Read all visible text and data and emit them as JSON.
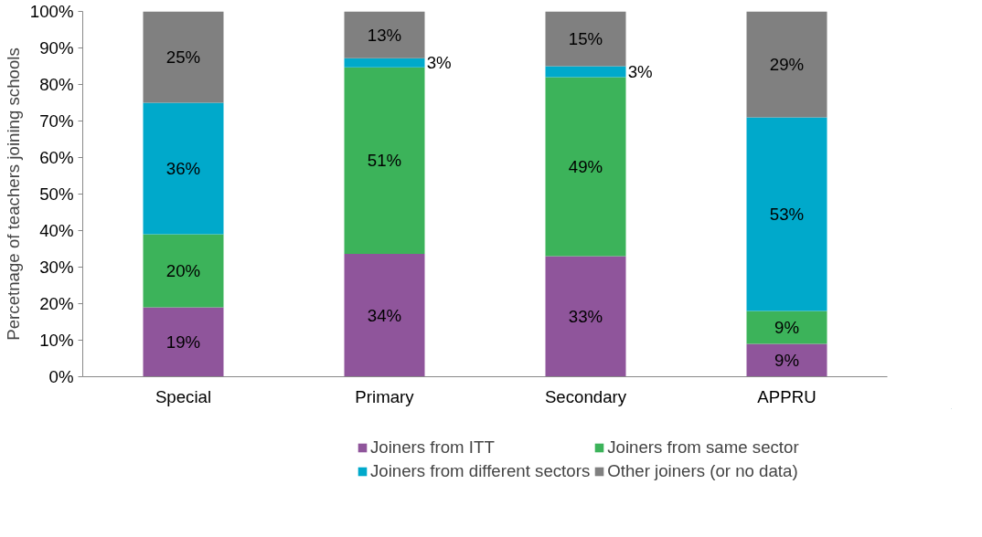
{
  "chart_data": {
    "type": "bar",
    "stacked": true,
    "ylabel": "Percetnage of teachers joining schools",
    "categories": [
      "Special",
      "Primary",
      "Secondary",
      "APPRU"
    ],
    "ylim": [
      0,
      100
    ],
    "yticks": [
      {
        "value": 0,
        "label": "0%"
      },
      {
        "value": 10,
        "label": "10%"
      },
      {
        "value": 20,
        "label": "20%"
      },
      {
        "value": 30,
        "label": "30%"
      },
      {
        "value": 40,
        "label": "40%"
      },
      {
        "value": 50,
        "label": "50%"
      },
      {
        "value": 60,
        "label": "60%"
      },
      {
        "value": 70,
        "label": "70%"
      },
      {
        "value": 80,
        "label": "80%"
      },
      {
        "value": 90,
        "label": "90%"
      },
      {
        "value": 100,
        "label": "100%"
      }
    ],
    "legend": "bottom",
    "grid": false,
    "series": [
      {
        "name": "Joiners from ITT",
        "color": "#8f559b",
        "values": [
          19,
          33.6,
          33,
          9
        ],
        "value_labels": [
          "19%",
          "34%",
          "33%",
          "9%"
        ]
      },
      {
        "name": "Joiners from same sector",
        "color": "#3cb35a",
        "values": [
          20,
          51.1,
          49,
          9
        ],
        "value_labels": [
          "20%",
          "51%",
          "49%",
          "9%"
        ]
      },
      {
        "name": "Joiners from different sectors",
        "color": "#00a9cb",
        "values": [
          36,
          2.5,
          3,
          53
        ],
        "value_labels": [
          "36%",
          "3%",
          "3%",
          "53%"
        ]
      },
      {
        "name": "Other joiners (or no data)",
        "color": "#808080",
        "values": [
          25,
          12.8,
          15,
          29
        ],
        "value_labels": [
          "25%",
          "13%",
          "15%",
          "29%"
        ]
      }
    ]
  }
}
